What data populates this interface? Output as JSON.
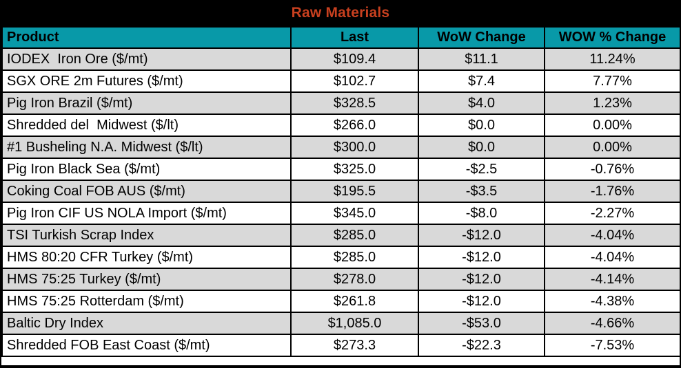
{
  "title": "Raw Materials",
  "colors": {
    "title_bg": "#000000",
    "title_text": "#C8401F",
    "header_bg": "#0899A8",
    "header_text": "#000000",
    "row_alt": "#D9D9D9",
    "row_plain": "#FFFFFF",
    "border": "#000000"
  },
  "chart_data": {
    "type": "table",
    "title": "Raw Materials",
    "columns": [
      "Product",
      "Last",
      "WoW Change",
      "WOW % Change"
    ],
    "rows": [
      {
        "product": "IODEX  Iron Ore ($/mt)",
        "last": "$109.4",
        "wow_change": "$11.1",
        "wow_pct": "11.24%"
      },
      {
        "product": "SGX ORE 2m Futures ($/mt)",
        "last": "$102.7",
        "wow_change": "$7.4",
        "wow_pct": "7.77%"
      },
      {
        "product": "Pig Iron Brazil ($/mt)",
        "last": "$328.5",
        "wow_change": "$4.0",
        "wow_pct": "1.23%"
      },
      {
        "product": "Shredded del  Midwest ($/lt)",
        "last": "$266.0",
        "wow_change": "$0.0",
        "wow_pct": "0.00%"
      },
      {
        "product": "#1 Busheling N.A. Midwest ($/lt)",
        "last": "$300.0",
        "wow_change": "$0.0",
        "wow_pct": "0.00%"
      },
      {
        "product": "Pig Iron Black Sea ($/mt)",
        "last": "$325.0",
        "wow_change": "-$2.5",
        "wow_pct": "-0.76%"
      },
      {
        "product": "Coking Coal FOB AUS ($/mt)",
        "last": "$195.5",
        "wow_change": "-$3.5",
        "wow_pct": "-1.76%"
      },
      {
        "product": "Pig Iron CIF US NOLA Import ($/mt)",
        "last": "$345.0",
        "wow_change": "-$8.0",
        "wow_pct": "-2.27%"
      },
      {
        "product": "TSI Turkish Scrap Index",
        "last": "$285.0",
        "wow_change": "-$12.0",
        "wow_pct": "-4.04%"
      },
      {
        "product": "HMS 80:20 CFR Turkey ($/mt)",
        "last": "$285.0",
        "wow_change": "-$12.0",
        "wow_pct": "-4.04%"
      },
      {
        "product": "HMS 75:25 Turkey ($/mt)",
        "last": "$278.0",
        "wow_change": "-$12.0",
        "wow_pct": "-4.14%"
      },
      {
        "product": "HMS 75:25 Rotterdam ($/mt)",
        "last": "$261.8",
        "wow_change": "-$12.0",
        "wow_pct": "-4.38%"
      },
      {
        "product": "Baltic Dry Index",
        "last": "$1,085.0",
        "wow_change": "-$53.0",
        "wow_pct": "-4.66%"
      },
      {
        "product": "Shredded FOB East Coast ($/mt)",
        "last": "$273.3",
        "wow_change": "-$22.3",
        "wow_pct": "-7.53%"
      }
    ]
  }
}
